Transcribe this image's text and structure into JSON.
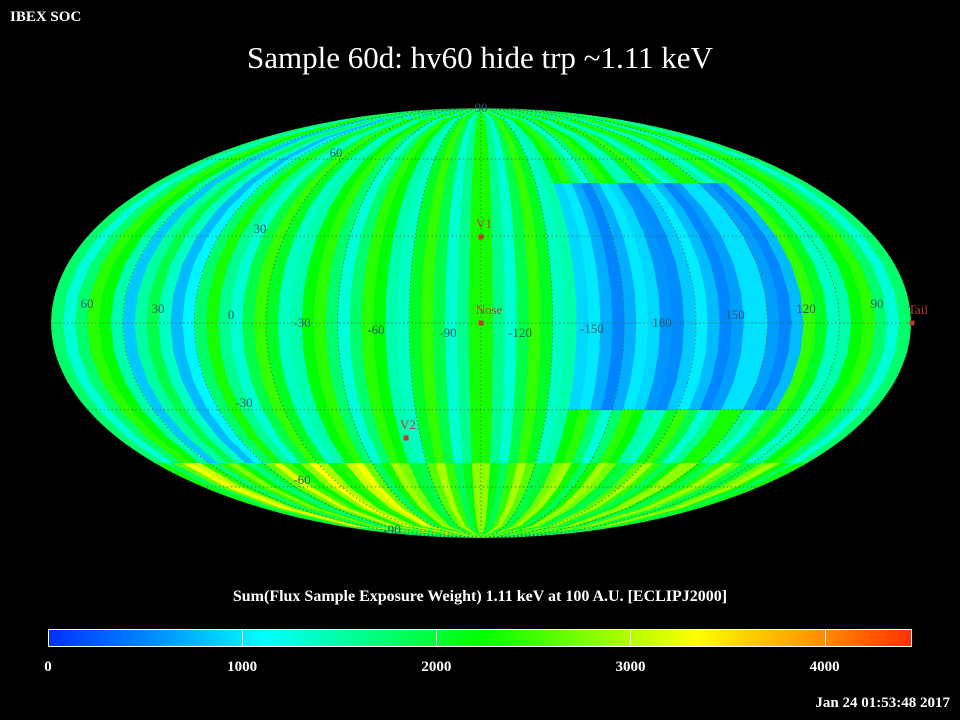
{
  "header": {
    "corner_label": "IBEX SOC",
    "title": "Sample 60d: hv60 hide trp ~1.11 keV"
  },
  "map": {
    "projection": "Mollweide",
    "lon_labels": [
      "60",
      "30",
      "0",
      "-30",
      "-60",
      "-90",
      "-120",
      "-150",
      "180",
      "150",
      "120",
      "90"
    ],
    "lat_labels": [
      "90",
      "60",
      "30",
      "-30",
      "-60",
      "-90"
    ],
    "markers": [
      {
        "label": "V1",
        "color": "#c0392b"
      },
      {
        "label": "Nose",
        "color": "#c0392b"
      },
      {
        "label": "V2",
        "color": "#c0392b"
      },
      {
        "label": "Tail",
        "color": "#c0392b"
      }
    ],
    "gradient_colors": [
      "#0030ff",
      "#0090ff",
      "#00ffff",
      "#00ff80",
      "#00ff00",
      "#80ff00",
      "#ffff00",
      "#ffa000",
      "#ff3000"
    ]
  },
  "colorbar": {
    "title": "Sum(Flux Sample Exposure Weight)  1.11 keV at 100 A.U. [ECLIPJ2000]",
    "ticks": [
      "0",
      "1000",
      "2000",
      "3000",
      "4000"
    ],
    "min": 0,
    "max": 4450
  },
  "footer": {
    "timestamp": "Jan 24 01:53:48 2017"
  }
}
